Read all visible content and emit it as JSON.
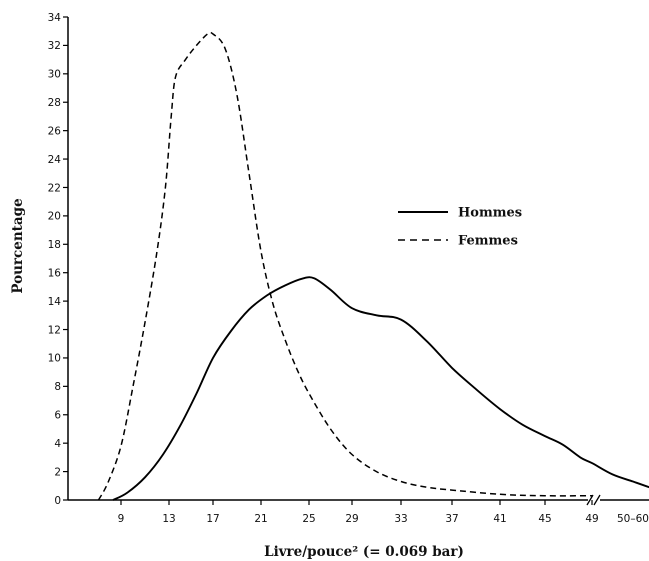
{
  "chart_data": {
    "type": "line",
    "title": "",
    "xlabel": "Livre/pouce² (= 0.069 bar)",
    "ylabel": "Pourcentage",
    "ylim": [
      0,
      34
    ],
    "y_ticks": [
      0,
      2,
      4,
      6,
      8,
      10,
      12,
      14,
      16,
      18,
      20,
      22,
      24,
      26,
      28,
      30,
      32,
      34
    ],
    "x_ticks": [
      {
        "label": "9",
        "value": 9
      },
      {
        "label": "13",
        "value": 13
      },
      {
        "label": "17",
        "value": 17
      },
      {
        "label": "21",
        "value": 21
      },
      {
        "label": "25",
        "value": 25
      },
      {
        "label": "29",
        "value": 29
      },
      {
        "label": "33",
        "value": 33
      },
      {
        "label": "37",
        "value": 37
      },
      {
        "label": "41",
        "value": 41
      },
      {
        "label": "45",
        "value": 45
      },
      {
        "label": "49",
        "value": 49
      },
      {
        "label": "50–60",
        "value": 55
      }
    ],
    "x_break_after": 49,
    "legend_position": "right",
    "grid": false,
    "series": [
      {
        "name": "Hommes",
        "line_style": "solid",
        "points": [
          [
            8.4,
            0
          ],
          [
            9.5,
            0.5
          ],
          [
            11,
            1.6
          ],
          [
            12.5,
            3.2
          ],
          [
            14,
            5.2
          ],
          [
            15.5,
            7.5
          ],
          [
            17,
            10
          ],
          [
            18.5,
            11.9
          ],
          [
            20,
            13.4
          ],
          [
            21.5,
            14.4
          ],
          [
            23,
            15.1
          ],
          [
            24.5,
            15.6
          ],
          [
            25.5,
            15.6
          ],
          [
            27,
            14.8
          ],
          [
            29,
            13.5
          ],
          [
            31,
            13.0
          ],
          [
            33,
            12.7
          ],
          [
            35,
            11.2
          ],
          [
            37,
            9.3
          ],
          [
            39,
            7.8
          ],
          [
            41,
            6.4
          ],
          [
            43,
            5.3
          ],
          [
            45,
            4.5
          ],
          [
            46.5,
            3.9
          ],
          [
            48,
            3.0
          ],
          [
            49,
            2.6
          ],
          [
            52,
            1.8
          ],
          [
            55,
            1.3
          ],
          [
            58,
            0.9
          ]
        ]
      },
      {
        "name": "Femmes",
        "line_style": "dashed",
        "points": [
          [
            7.3,
            0
          ],
          [
            8,
            1.2
          ],
          [
            9,
            3.8
          ],
          [
            10,
            8
          ],
          [
            11,
            12.5
          ],
          [
            12,
            17.5
          ],
          [
            12.7,
            22
          ],
          [
            13.2,
            27
          ],
          [
            13.6,
            29.8
          ],
          [
            14.5,
            31
          ],
          [
            15.5,
            32
          ],
          [
            16.5,
            32.8
          ],
          [
            17,
            32.8
          ],
          [
            18,
            31.8
          ],
          [
            19,
            28.5
          ],
          [
            20,
            23
          ],
          [
            21,
            17.5
          ],
          [
            22,
            13.8
          ],
          [
            23,
            11.3
          ],
          [
            24,
            9.2
          ],
          [
            25,
            7.5
          ],
          [
            27,
            5
          ],
          [
            29,
            3.2
          ],
          [
            31,
            2
          ],
          [
            33,
            1.3
          ],
          [
            35,
            0.9
          ],
          [
            37,
            0.7
          ],
          [
            41,
            0.4
          ],
          [
            45,
            0.3
          ],
          [
            49,
            0.3
          ]
        ]
      }
    ]
  }
}
